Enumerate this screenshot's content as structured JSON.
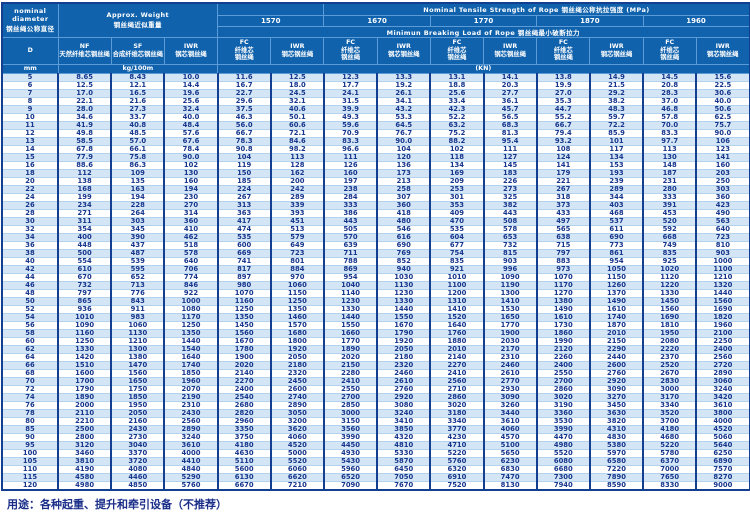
{
  "page": {
    "caption": "用途：各种起重、提升和牵引设备（不推荐）"
  },
  "colors": {
    "header_bg": "#1062ad",
    "border_navy": "#123f8f",
    "row_stripe": "#d4e6f5",
    "data_text": "#16358c",
    "header_text": "#ffffff"
  },
  "table": {
    "nominal_diameter_label": "nominal\ndiameter\n钢丝绳公称直径",
    "approx_weight_label": "Approx. Weight\n钢丝绳近似重量",
    "tensile_banner": "Nominal Tensile Strength of Rope 钢丝绳公称抗拉强度 (MPa)",
    "breaking_banner": "Minimun Breaking Load of Rope 钢丝绳最小破断拉力",
    "strengths": [
      "1570",
      "1670",
      "1770",
      "1870",
      "1960"
    ],
    "d_label": "D",
    "nf_label": "NF\n天然纤维芯钢丝绳",
    "sf_label": "SF\n合成纤维芯钢丝绳",
    "iwr_weight_label": "IWR\n钢芯钢丝绳",
    "fc_label": "FC\n纤维芯\n钢丝绳",
    "iwr_label": "IWR\n钢芯钢丝绳",
    "mm_unit": "mm",
    "kg_unit": "kg/100m",
    "kn_unit": "(KN)",
    "columns": [
      "D mm",
      "NF kg/100m",
      "SF kg/100m",
      "IWR kg/100m",
      "FC 1570",
      "IWR 1570",
      "FC 1670",
      "IWR 1670",
      "FC 1770",
      "IWR 1770",
      "FC 1870",
      "IWR 1870",
      "FC 1960",
      "IWR 1960"
    ],
    "rows": [
      [
        "5",
        "8.65",
        "8.43",
        "10.0",
        "11.6",
        "12.5",
        "12.3",
        "13.3",
        "13.1",
        "14.1",
        "13.8",
        "14.9",
        "14.5",
        "15.6"
      ],
      [
        "6",
        "12.5",
        "12.1",
        "14.4",
        "16.7",
        "18.0",
        "17.7",
        "19.2",
        "18.8",
        "20.3",
        "19.9",
        "21.5",
        "20.8",
        "22.5"
      ],
      [
        "7",
        "17.0",
        "16.5",
        "19.6",
        "22.7",
        "24.5",
        "24.1",
        "26.1",
        "25.6",
        "27.7",
        "27.0",
        "29.2",
        "28.3",
        "30.6"
      ],
      [
        "8",
        "22.1",
        "21.6",
        "25.6",
        "29.6",
        "32.1",
        "31.5",
        "34.1",
        "33.4",
        "36.1",
        "35.3",
        "38.2",
        "37.0",
        "40.0"
      ],
      [
        "9",
        "28.0",
        "27.3",
        "32.4",
        "37.5",
        "40.6",
        "39.9",
        "43.2",
        "42.3",
        "45.7",
        "44.7",
        "48.3",
        "46.8",
        "50.6"
      ],
      [
        "10",
        "34.6",
        "33.7",
        "40.0",
        "46.3",
        "50.1",
        "49.3",
        "53.3",
        "52.2",
        "56.5",
        "55.2",
        "59.7",
        "57.8",
        "62.5"
      ],
      [
        "11",
        "41.9",
        "40.8",
        "48.4",
        "56.0",
        "60.6",
        "59.6",
        "64.5",
        "63.2",
        "68.3",
        "66.7",
        "72.2",
        "70.0",
        "75.7"
      ],
      [
        "12",
        "49.8",
        "48.5",
        "57.6",
        "66.7",
        "72.1",
        "70.9",
        "76.7",
        "75.2",
        "81.3",
        "79.4",
        "85.9",
        "83.3",
        "90.0"
      ],
      [
        "13",
        "58.5",
        "57.0",
        "67.6",
        "78.3",
        "84.6",
        "83.3",
        "90.0",
        "88.2",
        "95.4",
        "93.2",
        "101",
        "97.7",
        "106"
      ],
      [
        "14",
        "67.8",
        "66.1",
        "78.4",
        "90.8",
        "98.2",
        "96.6",
        "104",
        "102",
        "111",
        "108",
        "117",
        "113",
        "123"
      ],
      [
        "15",
        "77.9",
        "75.8",
        "90.0",
        "104",
        "113",
        "111",
        "120",
        "118",
        "127",
        "124",
        "134",
        "130",
        "141"
      ],
      [
        "16",
        "88.6",
        "86.3",
        "102",
        "119",
        "128",
        "126",
        "136",
        "134",
        "145",
        "141",
        "153",
        "148",
        "160"
      ],
      [
        "18",
        "112",
        "109",
        "130",
        "150",
        "162",
        "160",
        "173",
        "169",
        "183",
        "179",
        "193",
        "187",
        "203"
      ],
      [
        "20",
        "138",
        "135",
        "160",
        "185",
        "200",
        "197",
        "213",
        "209",
        "226",
        "221",
        "239",
        "231",
        "250"
      ],
      [
        "22",
        "168",
        "163",
        "194",
        "224",
        "242",
        "238",
        "258",
        "253",
        "273",
        "267",
        "289",
        "280",
        "303"
      ],
      [
        "24",
        "199",
        "194",
        "230",
        "267",
        "289",
        "284",
        "307",
        "301",
        "325",
        "318",
        "344",
        "333",
        "360"
      ],
      [
        "26",
        "234",
        "228",
        "270",
        "313",
        "339",
        "333",
        "360",
        "353",
        "382",
        "373",
        "403",
        "391",
        "423"
      ],
      [
        "28",
        "271",
        "264",
        "314",
        "363",
        "393",
        "386",
        "418",
        "409",
        "443",
        "433",
        "468",
        "453",
        "490"
      ],
      [
        "30",
        "311",
        "303",
        "360",
        "417",
        "451",
        "443",
        "480",
        "470",
        "508",
        "497",
        "537",
        "520",
        "563"
      ],
      [
        "32",
        "354",
        "345",
        "410",
        "474",
        "513",
        "505",
        "546",
        "535",
        "578",
        "565",
        "611",
        "592",
        "640"
      ],
      [
        "34",
        "400",
        "390",
        "462",
        "535",
        "579",
        "570",
        "616",
        "604",
        "653",
        "638",
        "690",
        "668",
        "723"
      ],
      [
        "36",
        "448",
        "437",
        "518",
        "600",
        "649",
        "639",
        "690",
        "677",
        "732",
        "715",
        "773",
        "749",
        "810"
      ],
      [
        "38",
        "500",
        "487",
        "578",
        "669",
        "723",
        "711",
        "769",
        "754",
        "815",
        "797",
        "861",
        "835",
        "903"
      ],
      [
        "40",
        "554",
        "539",
        "640",
        "741",
        "801",
        "788",
        "852",
        "835",
        "903",
        "883",
        "954",
        "925",
        "1000"
      ],
      [
        "42",
        "610",
        "595",
        "706",
        "817",
        "884",
        "869",
        "940",
        "921",
        "996",
        "973",
        "1050",
        "1020",
        "1100"
      ],
      [
        "44",
        "670",
        "652",
        "774",
        "897",
        "970",
        "954",
        "1030",
        "1010",
        "1090",
        "1070",
        "1150",
        "1120",
        "1210"
      ],
      [
        "46",
        "732",
        "713",
        "846",
        "980",
        "1060",
        "1040",
        "1130",
        "1100",
        "1190",
        "1170",
        "1260",
        "1220",
        "1320"
      ],
      [
        "48",
        "797",
        "776",
        "922",
        "1070",
        "1150",
        "1140",
        "1230",
        "1200",
        "1300",
        "1270",
        "1370",
        "1330",
        "1440"
      ],
      [
        "50",
        "865",
        "843",
        "1000",
        "1160",
        "1250",
        "1230",
        "1330",
        "1310",
        "1410",
        "1380",
        "1490",
        "1450",
        "1560"
      ],
      [
        "52",
        "936",
        "911",
        "1080",
        "1250",
        "1350",
        "1330",
        "1440",
        "1410",
        "1530",
        "1490",
        "1610",
        "1560",
        "1690"
      ],
      [
        "54",
        "1010",
        "983",
        "1170",
        "1350",
        "1460",
        "1440",
        "1550",
        "1520",
        "1650",
        "1610",
        "1740",
        "1690",
        "1820"
      ],
      [
        "56",
        "1090",
        "1060",
        "1250",
        "1450",
        "1570",
        "1550",
        "1670",
        "1640",
        "1770",
        "1730",
        "1870",
        "1810",
        "1960"
      ],
      [
        "58",
        "1160",
        "1130",
        "1350",
        "1560",
        "1680",
        "1660",
        "1790",
        "1760",
        "1900",
        "1860",
        "2010",
        "1950",
        "2100"
      ],
      [
        "60",
        "1250",
        "1210",
        "1440",
        "1670",
        "1800",
        "1770",
        "1920",
        "1880",
        "2030",
        "1990",
        "2150",
        "2080",
        "2250"
      ],
      [
        "62",
        "1330",
        "1300",
        "1540",
        "1780",
        "1920",
        "1890",
        "2050",
        "2010",
        "2170",
        "2120",
        "2290",
        "2220",
        "2400"
      ],
      [
        "64",
        "1420",
        "1380",
        "1640",
        "1900",
        "2050",
        "2020",
        "2180",
        "2140",
        "2310",
        "2260",
        "2440",
        "2370",
        "2560"
      ],
      [
        "66",
        "1510",
        "1470",
        "1740",
        "2020",
        "2180",
        "2150",
        "2320",
        "2270",
        "2460",
        "2400",
        "2600",
        "2520",
        "2720"
      ],
      [
        "68",
        "1600",
        "1560",
        "1850",
        "2140",
        "2320",
        "2280",
        "2460",
        "2410",
        "2610",
        "2550",
        "2760",
        "2670",
        "2890"
      ],
      [
        "70",
        "1700",
        "1650",
        "1960",
        "2270",
        "2450",
        "2410",
        "2610",
        "2560",
        "2770",
        "2700",
        "2920",
        "2830",
        "3060"
      ],
      [
        "72",
        "1790",
        "1750",
        "2070",
        "2400",
        "2600",
        "2550",
        "2760",
        "2710",
        "2930",
        "2860",
        "3090",
        "3000",
        "3240"
      ],
      [
        "74",
        "1890",
        "1850",
        "2190",
        "2540",
        "2740",
        "2700",
        "2920",
        "2860",
        "3090",
        "3020",
        "3270",
        "3170",
        "3420"
      ],
      [
        "76",
        "2000",
        "1950",
        "2310",
        "2680",
        "2890",
        "2850",
        "3080",
        "3020",
        "3260",
        "3190",
        "3450",
        "3340",
        "3610"
      ],
      [
        "78",
        "2110",
        "2050",
        "2430",
        "2820",
        "3050",
        "3000",
        "3240",
        "3180",
        "3440",
        "3360",
        "3630",
        "3520",
        "3800"
      ],
      [
        "80",
        "2210",
        "2160",
        "2560",
        "2960",
        "3200",
        "3150",
        "3410",
        "3340",
        "3610",
        "3530",
        "3820",
        "3700",
        "4000"
      ],
      [
        "85",
        "2500",
        "2430",
        "2890",
        "3350",
        "3620",
        "3560",
        "3850",
        "3770",
        "4060",
        "3990",
        "4310",
        "4180",
        "4520"
      ],
      [
        "90",
        "2800",
        "2730",
        "3240",
        "3750",
        "4060",
        "3990",
        "4320",
        "4230",
        "4570",
        "4470",
        "4830",
        "4680",
        "5060"
      ],
      [
        "95",
        "3120",
        "3040",
        "3610",
        "4180",
        "4520",
        "4450",
        "4810",
        "4710",
        "5100",
        "4980",
        "5380",
        "5220",
        "5640"
      ],
      [
        "100",
        "3460",
        "3370",
        "4000",
        "4630",
        "5000",
        "4930",
        "5330",
        "5220",
        "5650",
        "5520",
        "5970",
        "5780",
        "6250"
      ],
      [
        "105",
        "3810",
        "3720",
        "4410",
        "5110",
        "5520",
        "5430",
        "5870",
        "5760",
        "6230",
        "6080",
        "6580",
        "6370",
        "6890"
      ],
      [
        "110",
        "4190",
        "4080",
        "4840",
        "5600",
        "6060",
        "5960",
        "6450",
        "6320",
        "6830",
        "6680",
        "7220",
        "7000",
        "7570"
      ],
      [
        "115",
        "4580",
        "4460",
        "5290",
        "6130",
        "6620",
        "6520",
        "7050",
        "6910",
        "7470",
        "7300",
        "7890",
        "7650",
        "8270"
      ],
      [
        "120",
        "4980",
        "4850",
        "5760",
        "6670",
        "7210",
        "7090",
        "7670",
        "7520",
        "8130",
        "7940",
        "8590",
        "8330",
        "9000"
      ]
    ]
  }
}
